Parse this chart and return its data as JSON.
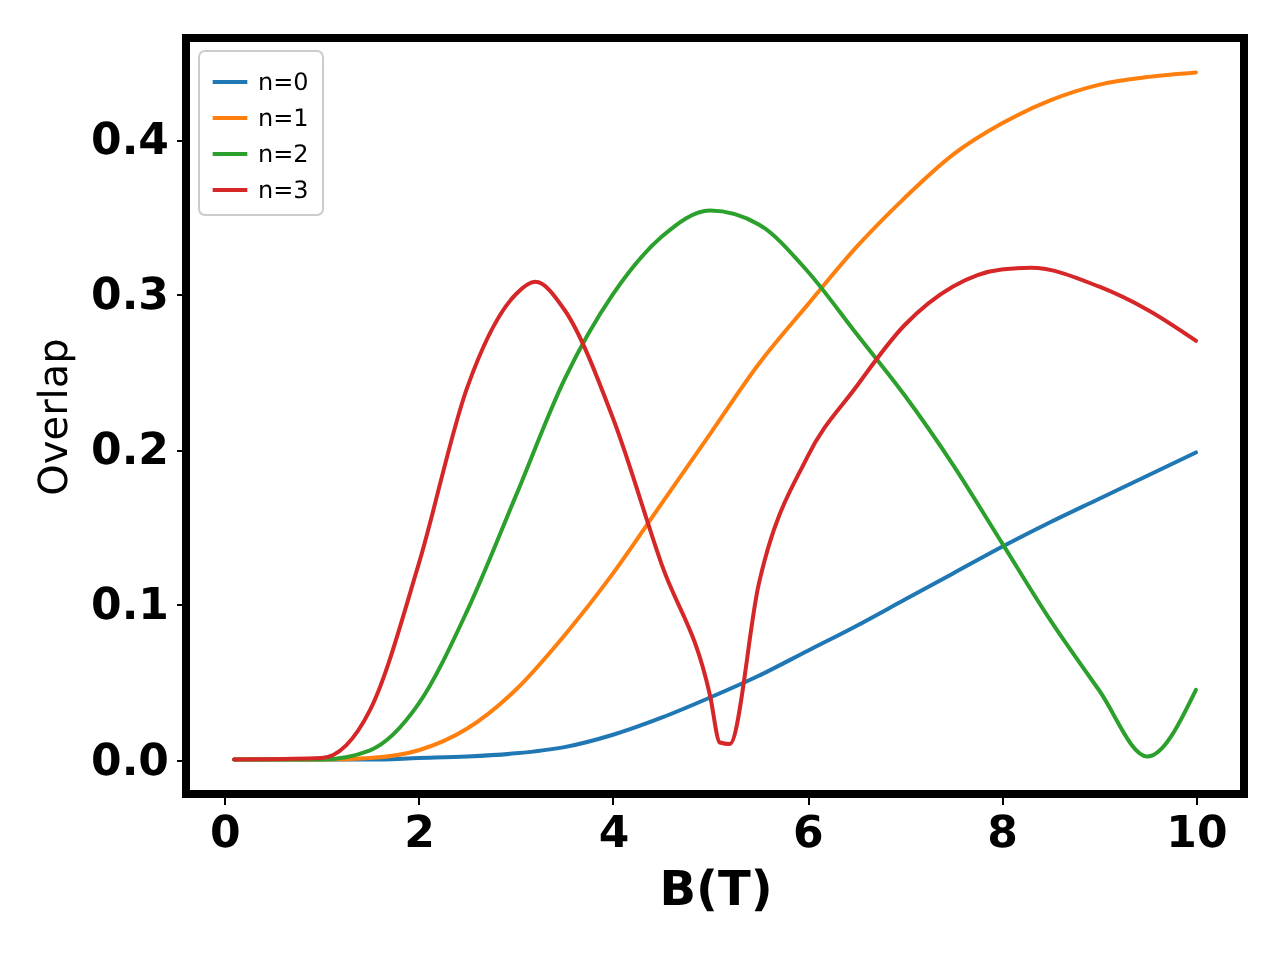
{
  "chart_data": {
    "type": "line",
    "xlabel": "B(T)",
    "ylabel": "Overlap",
    "xlim": [
      -0.395,
      10.495
    ],
    "ylim": [
      -0.0222,
      0.4652
    ],
    "xticks": [
      0,
      2,
      4,
      6,
      8,
      10
    ],
    "yticks": [
      {
        "value": 0,
        "label": "0.0"
      },
      0.1,
      0.2,
      0.3,
      0.4
    ],
    "legend": "top left",
    "grid": false,
    "line_style": "solid",
    "marker": "none",
    "x": [
      0.1,
      1,
      1.5,
      2,
      2.5,
      3,
      3.5,
      4,
      4.5,
      5,
      5.5,
      6,
      6.5,
      7,
      7.5,
      8,
      8.5,
      9,
      9.5,
      10
    ],
    "series": [
      {
        "name": "n=0",
        "color": "#1f77b4",
        "values": [
          0,
          0,
          0,
          0.001,
          0.002,
          0.004,
          0.008,
          0.016,
          0.027,
          0.04,
          0.054,
          0.07,
          0.086,
          0.103,
          0.12,
          0.137,
          0.153,
          0.168,
          0.183,
          0.198
        ]
      },
      {
        "name": "n=1",
        "color": "#ff7f0e",
        "values": [
          0,
          0,
          0.001,
          0.006,
          0.02,
          0.045,
          0.08,
          0.12,
          0.165,
          0.21,
          0.255,
          0.293,
          0.33,
          0.362,
          0.39,
          0.41,
          0.425,
          0.435,
          0.44,
          0.443
        ]
      },
      {
        "name": "n=2",
        "color": "#2ca02c",
        "values": [
          0,
          0,
          0.006,
          0.036,
          0.096,
          0.17,
          0.245,
          0.3,
          0.337,
          0.354,
          0.345,
          0.315,
          0.275,
          0.235,
          0.19,
          0.14,
          0.09,
          0.045,
          0.002,
          0.045
        ]
      },
      {
        "name": "n=3",
        "color": "#d62728",
        "x": [
          0.1,
          1,
          1.5,
          2,
          2.5,
          3,
          3.2,
          3.5,
          4,
          4.5,
          5,
          5.1,
          5.2,
          5.5,
          6,
          6.5,
          7,
          7.5,
          8,
          8.3,
          9,
          9.5,
          10
        ],
        "values": [
          0,
          0.001,
          0.032,
          0.126,
          0.24,
          0.3,
          0.308,
          0.29,
          0.22,
          0.126,
          0.041,
          0.011,
          0.01,
          0.113,
          0.195,
          0.24,
          0.28,
          0.305,
          0.316,
          0.317,
          0.305,
          0.29,
          0.27
        ]
      }
    ]
  }
}
